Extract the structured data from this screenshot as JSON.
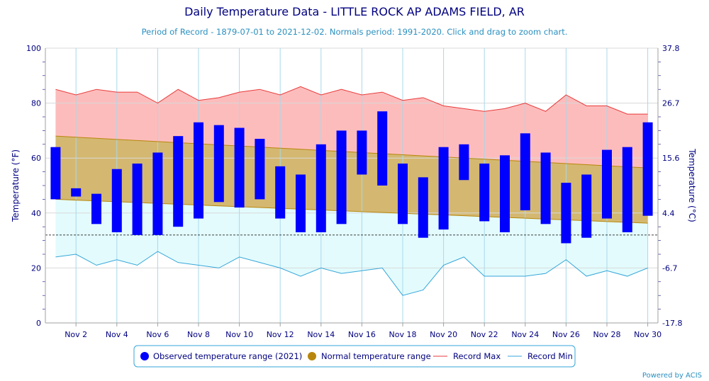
{
  "title": "Daily Temperature Data - LITTLE ROCK AP ADAMS FIELD, AR",
  "subtitle": "Period of Record - 1879-07-01 to 2021-12-02. Normals period: 1991-2020. Click and drag to zoom chart.",
  "credit": "Powered by ACIS",
  "colors": {
    "observed": "#0000ff",
    "normal_fill": "#d4b871",
    "normal_line": "#b8860b",
    "record_max_line": "#e83a3a",
    "record_max_fill": "#fdbcbc",
    "record_min_line": "#35a6d8",
    "record_min_fill": "#e3fbfd",
    "axis_text": "#000080",
    "grid": "#a8d8ea"
  },
  "chart_data": {
    "type": "bar",
    "title": "Daily Temperature Data - LITTLE ROCK AP ADAMS FIELD, AR",
    "xlabel": "",
    "ylabel": "Temperature (°F)",
    "ylabel_right": "Temperature (°C)",
    "ylim": [
      0,
      100
    ],
    "y_ticks": [
      "0",
      "20",
      "40",
      "60",
      "80",
      "100"
    ],
    "y_ticks_right": [
      "-17.8",
      "-6.7",
      "4.4",
      "15.6",
      "26.7",
      "37.8"
    ],
    "x_tick_labels": [
      "Nov 2",
      "Nov 4",
      "Nov 6",
      "Nov 8",
      "Nov 10",
      "Nov 12",
      "Nov 14",
      "Nov 16",
      "Nov 18",
      "Nov 20",
      "Nov 22",
      "Nov 24",
      "Nov 26",
      "Nov 28",
      "Nov 30"
    ],
    "x_tick_days": [
      2,
      4,
      6,
      8,
      10,
      12,
      14,
      16,
      18,
      20,
      22,
      24,
      26,
      28,
      30
    ],
    "days": [
      1,
      2,
      3,
      4,
      5,
      6,
      7,
      8,
      9,
      10,
      11,
      12,
      13,
      14,
      15,
      16,
      17,
      18,
      19,
      20,
      21,
      22,
      23,
      24,
      25,
      26,
      27,
      28,
      29,
      30
    ],
    "freezing_line": 32,
    "legend_position": "bottom",
    "grid": true,
    "series": [
      {
        "name": "Observed temperature range (2021)",
        "type": "floating-bar",
        "low": [
          45,
          46,
          36,
          33,
          32,
          32,
          35,
          38,
          44,
          42,
          45,
          38,
          33,
          33,
          36,
          54,
          50,
          36,
          31,
          34,
          52,
          37,
          33,
          41,
          36,
          29,
          31,
          38,
          33,
          39
        ],
        "high": [
          64,
          49,
          47,
          56,
          58,
          62,
          68,
          73,
          72,
          71,
          67,
          57,
          54,
          65,
          70,
          70,
          77,
          58,
          53,
          64,
          65,
          58,
          61,
          69,
          62,
          51,
          54,
          63,
          64,
          73
        ]
      },
      {
        "name": "Normal temperature range",
        "type": "band",
        "low": [
          45,
          44.7,
          44.4,
          44.1,
          43.8,
          43.5,
          43.2,
          42.9,
          42.6,
          42.3,
          42.0,
          41.7,
          41.4,
          41.1,
          40.8,
          40.5,
          40.2,
          39.9,
          39.6,
          39.3,
          39.0,
          38.7,
          38.4,
          38.1,
          37.8,
          37.5,
          37.2,
          36.9,
          36.6,
          36.3
        ],
        "high": [
          68,
          67.6,
          67.2,
          66.8,
          66.4,
          66.0,
          65.6,
          65.2,
          64.8,
          64.4,
          64.0,
          63.6,
          63.2,
          62.8,
          62.4,
          62.0,
          61.6,
          61.2,
          60.8,
          60.4,
          60.0,
          59.6,
          59.2,
          58.8,
          58.4,
          58.0,
          57.6,
          57.2,
          56.8,
          56.4
        ]
      },
      {
        "name": "Record Max",
        "type": "line",
        "values": [
          85,
          83,
          85,
          84,
          84,
          80,
          85,
          81,
          82,
          84,
          85,
          83,
          86,
          83,
          85,
          83,
          84,
          81,
          82,
          79,
          78,
          77,
          78,
          80,
          77,
          83,
          79,
          79,
          76,
          76
        ]
      },
      {
        "name": "Record Min",
        "type": "line",
        "values": [
          24,
          25,
          21,
          23,
          21,
          26,
          22,
          21,
          20,
          24,
          22,
          20,
          17,
          20,
          18,
          19,
          20,
          10,
          12,
          21,
          24,
          17,
          17,
          17,
          18,
          23,
          17,
          19,
          17,
          20
        ]
      }
    ]
  }
}
